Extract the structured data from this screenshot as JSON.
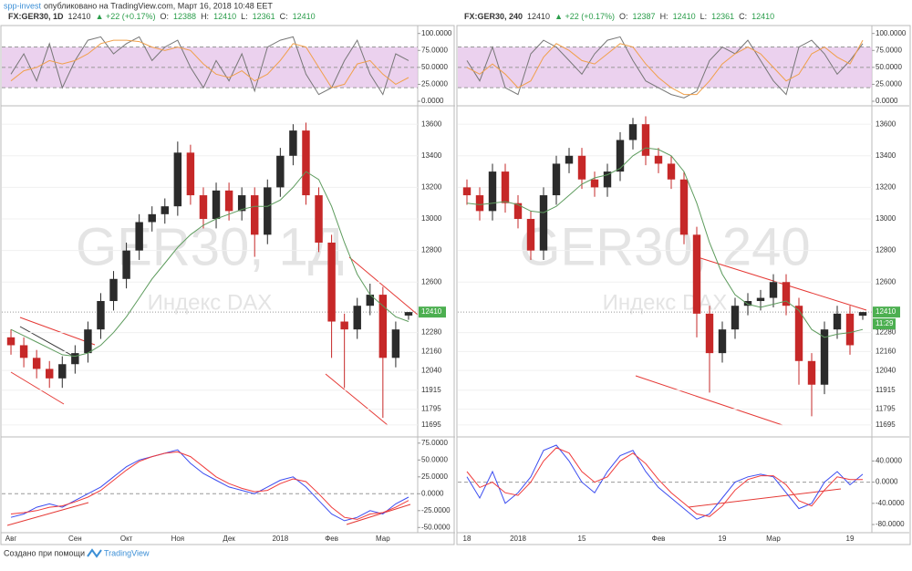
{
  "header": {
    "author": "spp-invest",
    "published": "опубликовано на TradingView.com, Март 16, 2018 10:48 EET"
  },
  "footer": {
    "text": "Создано при помощи",
    "brand": "TradingView"
  },
  "chart_data": [
    {
      "type": "candlestick",
      "symbol": "FX:GER30, 1D",
      "last": 12410,
      "change": "▲ +22 (+0.17%)",
      "quote": [
        {
          "label": "O:",
          "value": 12388
        },
        {
          "label": "H:",
          "value": 12410
        },
        {
          "label": "L:",
          "value": 12361
        },
        {
          "label": "C:",
          "value": 12410
        }
      ],
      "watermark": "GER30, 1Д",
      "watermark_sub": "Индекс DAX",
      "categories": [
        "Авг",
        null,
        null,
        null,
        null,
        "Сен",
        null,
        null,
        null,
        "Окт",
        null,
        null,
        null,
        "Ноя",
        null,
        null,
        null,
        "Дек",
        null,
        null,
        null,
        "2018",
        null,
        null,
        null,
        "Фев",
        null,
        null,
        null,
        "Мар",
        null,
        null
      ],
      "open": [
        12250,
        12200,
        12120,
        12050,
        11990,
        12080,
        12150,
        12300,
        12480,
        12620,
        12800,
        12980,
        13030,
        13080,
        13420,
        13150,
        13000,
        13180,
        13050,
        13150,
        12900,
        13200,
        13400,
        13560,
        13150,
        12850,
        12350,
        12300,
        12450,
        12520,
        12120,
        12388
      ],
      "high": [
        12300,
        12250,
        12170,
        12100,
        12130,
        12200,
        12350,
        12530,
        12670,
        12850,
        13030,
        13080,
        13130,
        13490,
        13470,
        13200,
        13230,
        13230,
        13200,
        13200,
        13250,
        13450,
        13600,
        13610,
        13200,
        12900,
        12400,
        12500,
        12590,
        12570,
        12350,
        12410
      ],
      "low": [
        12140,
        12060,
        11990,
        11930,
        11930,
        12020,
        12090,
        12240,
        12420,
        12560,
        12740,
        12920,
        12970,
        13020,
        13090,
        12940,
        12940,
        12990,
        12990,
        12760,
        12840,
        13140,
        13340,
        13090,
        12790,
        12120,
        11930,
        12240,
        12390,
        11740,
        12060,
        12361
      ],
      "close": [
        12200,
        12120,
        12050,
        11990,
        12080,
        12150,
        12300,
        12480,
        12620,
        12800,
        12980,
        13030,
        13080,
        13420,
        13150,
        13000,
        13180,
        13050,
        13150,
        12900,
        13200,
        13400,
        13560,
        13150,
        12850,
        12350,
        12300,
        12450,
        12520,
        12120,
        12300,
        12410
      ],
      "ma": {
        "color": "#5d9b5d",
        "values": [
          12300,
          12260,
          12220,
          12180,
          12140,
          12130,
          12150,
          12200,
          12280,
          12380,
          12500,
          12620,
          12720,
          12820,
          12900,
          12960,
          13000,
          13030,
          13060,
          13080,
          13080,
          13120,
          13200,
          13300,
          13250,
          13080,
          12850,
          12650,
          12520,
          12450,
          12380,
          12350
        ]
      },
      "ylim": [
        11625,
        13705
      ],
      "yticks": [
        13600,
        13400,
        13200,
        13000,
        12800,
        12600,
        12280,
        12160,
        12040,
        11915,
        11795,
        11695
      ],
      "top_panel": {
        "ylim": [
          -4,
          109
        ],
        "band": [
          20,
          50,
          80
        ],
        "yticks": [
          {
            "value": 100,
            "label": "100.0000"
          },
          {
            "value": 75,
            "label": "75.0000"
          },
          {
            "value": 50,
            "label": "50.0000"
          },
          {
            "value": 25,
            "label": "25.0000"
          },
          {
            "value": 0,
            "label": "0.0000"
          }
        ],
        "series": [
          {
            "color": "#777777",
            "values": [
              40,
              70,
              30,
              85,
              20,
              60,
              90,
              95,
              70,
              85,
              95,
              60,
              80,
              90,
              50,
              20,
              60,
              30,
              70,
              15,
              80,
              90,
              95,
              40,
              10,
              20,
              60,
              90,
              40,
              10,
              70,
              60
            ]
          },
          {
            "color": "#f0a04b",
            "values": [
              30,
              45,
              50,
              60,
              55,
              60,
              70,
              85,
              90,
              90,
              88,
              80,
              75,
              80,
              75,
              55,
              40,
              35,
              45,
              30,
              40,
              60,
              85,
              80,
              50,
              20,
              25,
              55,
              60,
              40,
              25,
              35
            ]
          }
        ]
      },
      "bottom_panel": {
        "ylim": [
          -55,
          81.5
        ],
        "hline": 0,
        "yticks": [
          {
            "value": 75,
            "label": "75.0000"
          },
          {
            "value": 50,
            "label": "50.0000"
          },
          {
            "value": 25,
            "label": "25.0000"
          },
          {
            "value": 0,
            "label": "0.0000"
          },
          {
            "value": -25,
            "label": "-25.0000"
          },
          {
            "value": -50,
            "label": "-50.0000"
          }
        ],
        "series": [
          {
            "color": "#3b4cf0",
            "values": [
              -35,
              -30,
              -20,
              -15,
              -20,
              -10,
              0,
              10,
              25,
              40,
              50,
              55,
              60,
              65,
              45,
              30,
              20,
              10,
              5,
              0,
              10,
              20,
              25,
              10,
              -10,
              -30,
              -40,
              -35,
              -25,
              -30,
              -15,
              -5
            ]
          },
          {
            "color": "#f03b3b",
            "values": [
              -30,
              -28,
              -25,
              -20,
              -18,
              -12,
              -5,
              5,
              20,
              35,
              48,
              55,
              60,
              62,
              55,
              40,
              25,
              15,
              8,
              3,
              5,
              15,
              22,
              18,
              0,
              -20,
              -35,
              -38,
              -30,
              -28,
              -20,
              -10
            ]
          }
        ]
      }
    },
    {
      "type": "candlestick",
      "symbol": "FX:GER30, 240",
      "last": 12410,
      "change": "▲ +22 (+0.17%)",
      "countdown": "11:29",
      "quote": [
        {
          "label": "O:",
          "value": 12387
        },
        {
          "label": "H:",
          "value": 12410
        },
        {
          "label": "L:",
          "value": 12361
        },
        {
          "label": "C:",
          "value": 12410
        }
      ],
      "watermark": "GER30, 240",
      "watermark_sub": "Индекс DAX",
      "categories": [
        "18",
        null,
        null,
        null,
        "2018",
        null,
        null,
        null,
        null,
        "15",
        null,
        null,
        null,
        null,
        null,
        "Фев",
        null,
        null,
        null,
        null,
        "19",
        null,
        null,
        null,
        "Мар",
        null,
        null,
        null,
        null,
        null,
        "19",
        null
      ],
      "open": [
        13200,
        13150,
        13050,
        13300,
        13100,
        13000,
        12800,
        13150,
        13350,
        13400,
        13250,
        13200,
        13300,
        13500,
        13600,
        13400,
        13350,
        13250,
        12900,
        12400,
        12150,
        12300,
        12450,
        12480,
        12500,
        12600,
        12450,
        12100,
        11950,
        12300,
        12400,
        12387
      ],
      "high": [
        13250,
        13200,
        13350,
        13350,
        13150,
        13050,
        13200,
        13400,
        13450,
        13450,
        13300,
        13350,
        13550,
        13640,
        13650,
        13450,
        13400,
        13300,
        12950,
        12450,
        12350,
        12500,
        12530,
        12550,
        12650,
        12650,
        12500,
        12150,
        12350,
        12450,
        12450,
        12410
      ],
      "low": [
        13090,
        12990,
        12990,
        13040,
        12940,
        12740,
        12740,
        13090,
        13290,
        13190,
        13140,
        13140,
        13240,
        13440,
        13340,
        13290,
        13190,
        12840,
        12250,
        11900,
        12090,
        12240,
        12390,
        12420,
        12440,
        12390,
        11950,
        11750,
        11890,
        12240,
        12140,
        12361
      ],
      "close": [
        13150,
        13050,
        13300,
        13100,
        13000,
        12800,
        13150,
        13350,
        13400,
        13250,
        13200,
        13300,
        13500,
        13600,
        13400,
        13350,
        13250,
        12900,
        12400,
        12150,
        12300,
        12450,
        12480,
        12500,
        12600,
        12450,
        12100,
        11950,
        12300,
        12400,
        12200,
        12410
      ],
      "ma": {
        "color": "#5d9b5d",
        "values": [
          13100,
          13090,
          13100,
          13110,
          13090,
          13050,
          13040,
          13080,
          13150,
          13220,
          13260,
          13280,
          13320,
          13400,
          13450,
          13440,
          13400,
          13300,
          13100,
          12850,
          12650,
          12520,
          12460,
          12440,
          12460,
          12480,
          12420,
          12300,
          12250,
          12270,
          12280,
          12300
        ]
      },
      "ylim": [
        11625,
        13705
      ],
      "yticks": [
        13600,
        13400,
        13200,
        13000,
        12800,
        12600,
        12280,
        12160,
        12040,
        11915,
        11795,
        11695
      ],
      "top_panel": {
        "ylim": [
          -4,
          109
        ],
        "band": [
          20,
          50,
          80
        ],
        "yticks": [
          {
            "value": 100,
            "label": "100.0000"
          },
          {
            "value": 75,
            "label": "75.0000"
          },
          {
            "value": 50,
            "label": "50.0000"
          },
          {
            "value": 25,
            "label": "25.0000"
          },
          {
            "value": 0,
            "label": "0.0000"
          }
        ],
        "series": [
          {
            "color": "#777777",
            "values": [
              60,
              30,
              80,
              20,
              10,
              70,
              90,
              80,
              60,
              40,
              70,
              90,
              95,
              60,
              30,
              20,
              10,
              5,
              15,
              60,
              80,
              70,
              90,
              60,
              30,
              10,
              80,
              90,
              70,
              40,
              60,
              85
            ]
          },
          {
            "color": "#f0a04b",
            "values": [
              50,
              40,
              55,
              40,
              20,
              30,
              65,
              85,
              75,
              60,
              55,
              70,
              85,
              80,
              55,
              35,
              20,
              10,
              10,
              30,
              55,
              70,
              80,
              70,
              50,
              30,
              40,
              70,
              80,
              65,
              55,
              90
            ]
          }
        ]
      },
      "bottom_panel": {
        "ylim": [
          -92,
          82
        ],
        "hline": 0,
        "yticks": [
          {
            "value": 40,
            "label": "40.0000"
          },
          {
            "value": 0,
            "label": "0.0000"
          },
          {
            "value": -40,
            "label": "-40.0000"
          },
          {
            "value": -80,
            "label": "-80.0000"
          }
        ],
        "series": [
          {
            "color": "#3b4cf0",
            "values": [
              10,
              -30,
              20,
              -40,
              -20,
              10,
              60,
              70,
              40,
              0,
              -20,
              20,
              50,
              60,
              20,
              -10,
              -30,
              -50,
              -70,
              -60,
              -30,
              0,
              10,
              15,
              10,
              -20,
              -50,
              -40,
              0,
              20,
              -5,
              15
            ]
          },
          {
            "color": "#f03b3b",
            "values": [
              20,
              -10,
              0,
              -20,
              -25,
              0,
              40,
              65,
              55,
              20,
              0,
              10,
              40,
              55,
              35,
              5,
              -20,
              -40,
              -60,
              -65,
              -45,
              -15,
              5,
              12,
              12,
              -5,
              -35,
              -45,
              -15,
              10,
              5,
              5
            ]
          }
        ]
      }
    }
  ]
}
